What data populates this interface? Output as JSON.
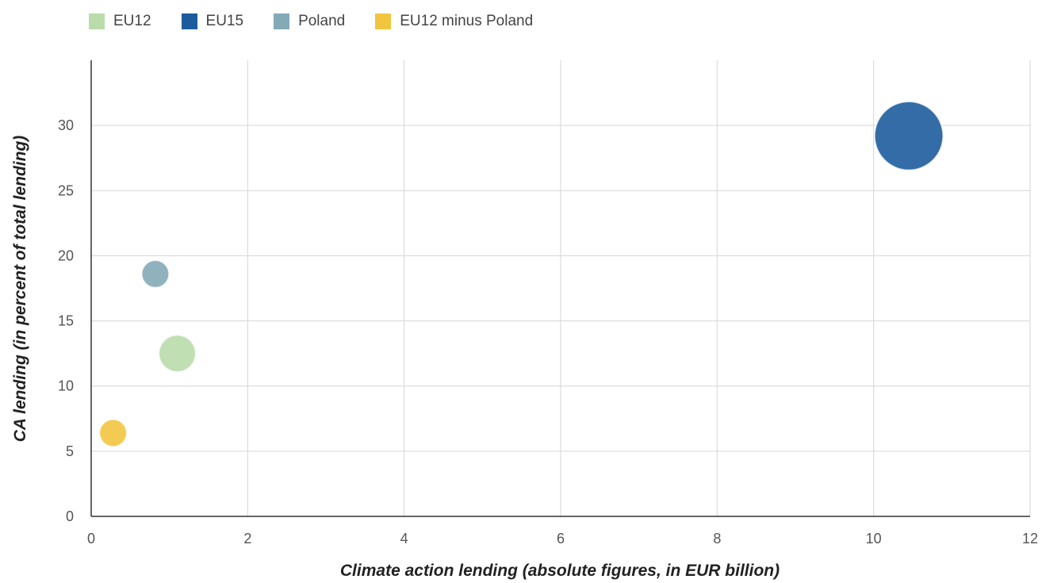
{
  "chart_data": {
    "type": "bubble",
    "xlabel": "Climate action lending (absolute figures, in EUR billion)",
    "ylabel": "CA lending (in percent of total lending)",
    "xlim": [
      0,
      12
    ],
    "ylim": [
      0,
      35
    ],
    "xticks": [
      0,
      2,
      4,
      6,
      8,
      10,
      12
    ],
    "yticks": [
      0,
      5,
      10,
      15,
      20,
      25,
      30
    ],
    "grid": true,
    "legend_position": "top-left",
    "series": [
      {
        "name": "EU12",
        "color": "#b9dcaa",
        "x": 1.1,
        "y": 12.5,
        "r": 23
      },
      {
        "name": "EU15",
        "color": "#1d5c9c",
        "x": 10.45,
        "y": 29.2,
        "r": 43
      },
      {
        "name": "Poland",
        "color": "#83aab5",
        "x": 0.82,
        "y": 18.6,
        "r": 17
      },
      {
        "name": "EU12 minus Poland",
        "color": "#f2c53f",
        "x": 0.28,
        "y": 6.4,
        "r": 17
      }
    ]
  }
}
